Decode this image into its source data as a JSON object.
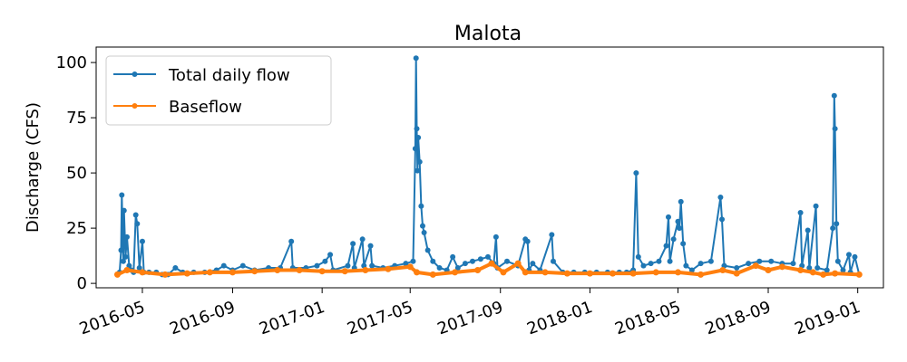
{
  "chart_data": {
    "type": "line",
    "title": "Malota",
    "xlabel": "",
    "ylabel": "Discharge (CFS)",
    "xlim": [
      "2016-02-28",
      "2019-02-05"
    ],
    "ylim": [
      -2,
      107
    ],
    "x_ticks": [
      "2016-05",
      "2016-09",
      "2017-01",
      "2017-05",
      "2017-09",
      "2018-01",
      "2018-05",
      "2018-09",
      "2019-01"
    ],
    "y_ticks": [
      0,
      25,
      50,
      75,
      100
    ],
    "legend_position": "upper-left",
    "series": [
      {
        "name": "Total daily flow",
        "color": "#1f77b4",
        "marker": "circle",
        "points": [
          [
            "2016-03-28",
            4
          ],
          [
            "2016-03-31",
            5
          ],
          [
            "2016-04-02",
            15
          ],
          [
            "2016-04-03",
            40
          ],
          [
            "2016-04-05",
            10
          ],
          [
            "2016-04-06",
            33
          ],
          [
            "2016-04-08",
            12
          ],
          [
            "2016-04-10",
            21
          ],
          [
            "2016-04-13",
            8
          ],
          [
            "2016-04-16",
            6
          ],
          [
            "2016-04-19",
            5
          ],
          [
            "2016-04-22",
            31
          ],
          [
            "2016-04-24",
            27
          ],
          [
            "2016-04-27",
            7
          ],
          [
            "2016-05-01",
            19
          ],
          [
            "2016-05-03",
            5
          ],
          [
            "2016-05-10",
            5
          ],
          [
            "2016-05-20",
            5
          ],
          [
            "2016-05-28",
            4
          ],
          [
            "2016-06-05",
            4
          ],
          [
            "2016-06-15",
            7
          ],
          [
            "2016-06-25",
            5
          ],
          [
            "2016-07-10",
            5
          ],
          [
            "2016-07-25",
            5
          ],
          [
            "2016-08-10",
            6
          ],
          [
            "2016-08-20",
            8
          ],
          [
            "2016-09-01",
            6
          ],
          [
            "2016-09-15",
            8
          ],
          [
            "2016-10-01",
            6
          ],
          [
            "2016-10-20",
            7
          ],
          [
            "2016-11-05",
            7
          ],
          [
            "2016-11-20",
            19
          ],
          [
            "2016-11-22",
            7
          ],
          [
            "2016-12-10",
            7
          ],
          [
            "2016-12-25",
            8
          ],
          [
            "2017-01-05",
            10
          ],
          [
            "2017-01-12",
            13
          ],
          [
            "2017-01-16",
            6
          ],
          [
            "2017-02-05",
            8
          ],
          [
            "2017-02-12",
            18
          ],
          [
            "2017-02-14",
            7
          ],
          [
            "2017-02-25",
            20
          ],
          [
            "2017-02-27",
            8
          ],
          [
            "2017-03-08",
            17
          ],
          [
            "2017-03-10",
            8
          ],
          [
            "2017-03-25",
            7
          ],
          [
            "2017-04-10",
            8
          ],
          [
            "2017-04-25",
            9
          ],
          [
            "2017-05-05",
            10
          ],
          [
            "2017-05-08",
            61
          ],
          [
            "2017-05-09",
            102
          ],
          [
            "2017-05-10",
            70
          ],
          [
            "2017-05-11",
            51
          ],
          [
            "2017-05-12",
            66
          ],
          [
            "2017-05-14",
            55
          ],
          [
            "2017-05-16",
            35
          ],
          [
            "2017-05-18",
            26
          ],
          [
            "2017-05-20",
            23
          ],
          [
            "2017-05-25",
            15
          ],
          [
            "2017-06-01",
            10
          ],
          [
            "2017-06-10",
            7
          ],
          [
            "2017-06-20",
            6
          ],
          [
            "2017-06-28",
            12
          ],
          [
            "2017-07-05",
            7
          ],
          [
            "2017-07-15",
            9
          ],
          [
            "2017-07-25",
            10
          ],
          [
            "2017-08-05",
            11
          ],
          [
            "2017-08-15",
            12
          ],
          [
            "2017-08-23",
            9
          ],
          [
            "2017-08-26",
            21
          ],
          [
            "2017-08-28",
            7
          ],
          [
            "2017-09-10",
            10
          ],
          [
            "2017-09-25",
            8
          ],
          [
            "2017-10-05",
            20
          ],
          [
            "2017-10-08",
            19
          ],
          [
            "2017-10-10",
            6
          ],
          [
            "2017-10-15",
            9
          ],
          [
            "2017-10-25",
            6
          ],
          [
            "2017-11-10",
            22
          ],
          [
            "2017-11-12",
            10
          ],
          [
            "2017-11-25",
            5
          ],
          [
            "2017-12-10",
            5
          ],
          [
            "2017-12-25",
            5
          ],
          [
            "2018-01-10",
            5
          ],
          [
            "2018-01-25",
            5
          ],
          [
            "2018-02-10",
            5
          ],
          [
            "2018-02-20",
            5
          ],
          [
            "2018-03-01",
            6
          ],
          [
            "2018-03-05",
            50
          ],
          [
            "2018-03-08",
            12
          ],
          [
            "2018-03-15",
            8
          ],
          [
            "2018-03-25",
            9
          ],
          [
            "2018-04-05",
            10
          ],
          [
            "2018-04-15",
            17
          ],
          [
            "2018-04-18",
            30
          ],
          [
            "2018-04-20",
            10
          ],
          [
            "2018-04-25",
            20
          ],
          [
            "2018-05-01",
            28
          ],
          [
            "2018-05-03",
            25
          ],
          [
            "2018-05-05",
            37
          ],
          [
            "2018-05-08",
            18
          ],
          [
            "2018-05-12",
            8
          ],
          [
            "2018-05-20",
            6
          ],
          [
            "2018-06-01",
            9
          ],
          [
            "2018-06-15",
            10
          ],
          [
            "2018-06-28",
            39
          ],
          [
            "2018-06-30",
            29
          ],
          [
            "2018-07-03",
            8
          ],
          [
            "2018-07-20",
            7
          ],
          [
            "2018-08-05",
            9
          ],
          [
            "2018-08-20",
            10
          ],
          [
            "2018-09-05",
            10
          ],
          [
            "2018-09-20",
            9
          ],
          [
            "2018-10-05",
            9
          ],
          [
            "2018-10-15",
            32
          ],
          [
            "2018-10-17",
            8
          ],
          [
            "2018-10-25",
            24
          ],
          [
            "2018-10-27",
            7
          ],
          [
            "2018-11-05",
            35
          ],
          [
            "2018-11-07",
            7
          ],
          [
            "2018-11-20",
            6
          ],
          [
            "2018-11-28",
            25
          ],
          [
            "2018-11-30",
            85
          ],
          [
            "2018-12-01",
            70
          ],
          [
            "2018-12-03",
            27
          ],
          [
            "2018-12-05",
            10
          ],
          [
            "2018-12-12",
            6
          ],
          [
            "2018-12-20",
            13
          ],
          [
            "2018-12-22",
            5
          ],
          [
            "2018-12-28",
            12
          ],
          [
            "2019-01-03",
            4
          ]
        ]
      },
      {
        "name": "Baseflow",
        "color": "#ff7f0e",
        "marker": "circle",
        "points": [
          [
            "2016-03-28",
            4
          ],
          [
            "2016-04-10",
            6
          ],
          [
            "2016-05-01",
            5
          ],
          [
            "2016-06-01",
            4
          ],
          [
            "2016-07-01",
            4.5
          ],
          [
            "2016-08-01",
            5
          ],
          [
            "2016-09-01",
            5
          ],
          [
            "2016-10-01",
            5.5
          ],
          [
            "2016-11-01",
            6
          ],
          [
            "2016-12-01",
            6
          ],
          [
            "2017-01-01",
            5.5
          ],
          [
            "2017-02-01",
            5.5
          ],
          [
            "2017-03-01",
            6
          ],
          [
            "2017-04-01",
            6.5
          ],
          [
            "2017-05-01",
            7.5
          ],
          [
            "2017-05-10",
            5
          ],
          [
            "2017-06-01",
            4
          ],
          [
            "2017-07-01",
            5
          ],
          [
            "2017-08-01",
            6
          ],
          [
            "2017-08-20",
            9
          ],
          [
            "2017-09-05",
            5
          ],
          [
            "2017-09-25",
            9
          ],
          [
            "2017-10-05",
            5
          ],
          [
            "2017-11-01",
            5
          ],
          [
            "2017-12-01",
            4.5
          ],
          [
            "2018-01-01",
            4.5
          ],
          [
            "2018-02-01",
            4.5
          ],
          [
            "2018-03-01",
            4.5
          ],
          [
            "2018-04-01",
            5
          ],
          [
            "2018-05-01",
            5
          ],
          [
            "2018-06-01",
            4
          ],
          [
            "2018-07-01",
            6
          ],
          [
            "2018-07-20",
            4.5
          ],
          [
            "2018-08-15",
            8
          ],
          [
            "2018-09-01",
            6
          ],
          [
            "2018-09-20",
            7.5
          ],
          [
            "2018-10-15",
            6
          ],
          [
            "2018-11-01",
            5
          ],
          [
            "2018-11-15",
            4
          ],
          [
            "2018-12-01",
            4.5
          ],
          [
            "2019-01-03",
            4
          ]
        ]
      }
    ]
  }
}
